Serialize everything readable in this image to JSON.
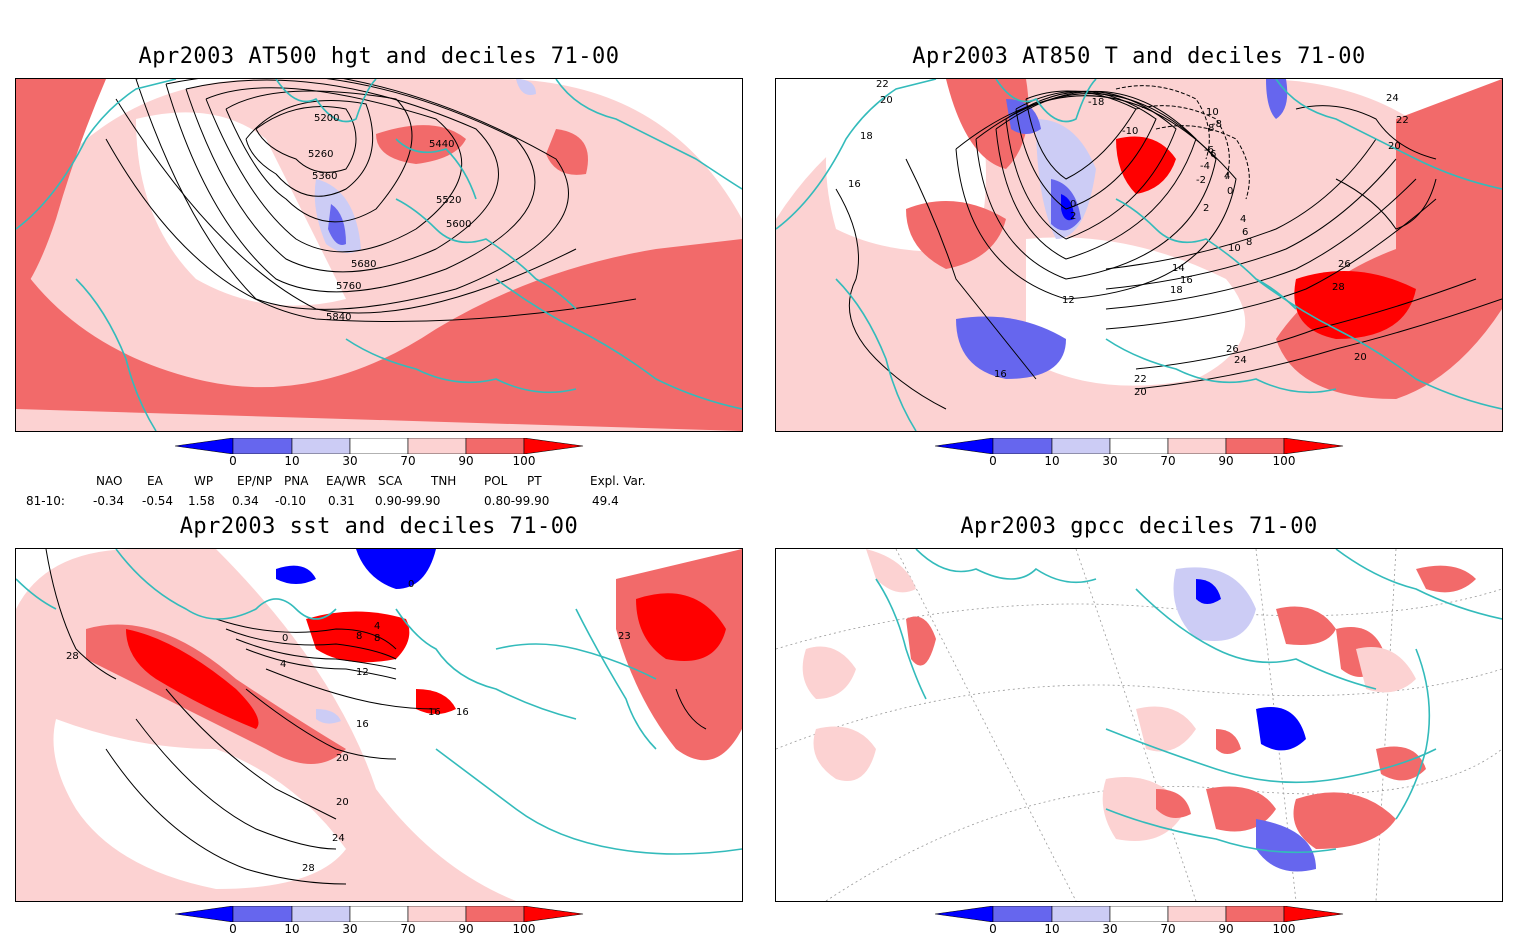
{
  "panels": [
    {
      "title": "Apr2003 AT500 hgt and deciles 71-00",
      "contour_labels": [
        "5200",
        "5260",
        "5360",
        "5440",
        "5520",
        "5600",
        "5680",
        "5760",
        "5840"
      ]
    },
    {
      "title": "Apr2003 AT850 T and deciles 71-00",
      "contour_labels": [
        "22",
        "20",
        "18",
        "16",
        "12",
        "10",
        "8",
        "6",
        "4",
        "2",
        "0",
        "-2",
        "-4",
        "-6",
        "-8",
        "-10",
        "-12",
        "-18",
        "14",
        "16",
        "18",
        "24",
        "22",
        "20",
        "26",
        "28",
        "20",
        "26",
        "24",
        "22",
        "20",
        "16",
        "0",
        "2",
        "4",
        "6",
        "8",
        "10"
      ]
    },
    {
      "title": "Apr2003 sst and deciles 71-00",
      "contour_labels": [
        "28",
        "0",
        "4",
        "8",
        "12",
        "16",
        "16",
        "20",
        "20",
        "24",
        "28",
        "4",
        "8",
        "16",
        "23",
        "0"
      ]
    },
    {
      "title": "Apr2003 gpcc deciles 71-00",
      "contour_labels": []
    }
  ],
  "colorbar": {
    "tick_labels": [
      "0",
      "10",
      "30",
      "70",
      "90",
      "100"
    ],
    "colors": [
      "#0000ff",
      "#6666ee",
      "#ccccf5",
      "#ffffff",
      "#fcd2d2",
      "#f26a6a",
      "#ff0000"
    ]
  },
  "teleconnections": {
    "headers": [
      "NAO",
      "EA",
      "WP",
      "EP/NP",
      "PNA",
      "EA/WR",
      "SCA",
      "TNH",
      "POL",
      "PT",
      "Expl. Var."
    ],
    "row_label": "81-10:",
    "values": [
      "-0.34",
      "-0.54",
      "1.58",
      "0.34",
      "-0.10",
      "0.31",
      "0.90-99.90",
      "0.80-99.90",
      "49.4"
    ]
  },
  "colors": {
    "coast": "#33bbbb",
    "light_red": "#fcd2d2",
    "mid_red": "#f26a6a",
    "red": "#ff0000",
    "light_blue": "#ccccf5",
    "mid_blue": "#6666ee",
    "blue": "#0000ff"
  }
}
